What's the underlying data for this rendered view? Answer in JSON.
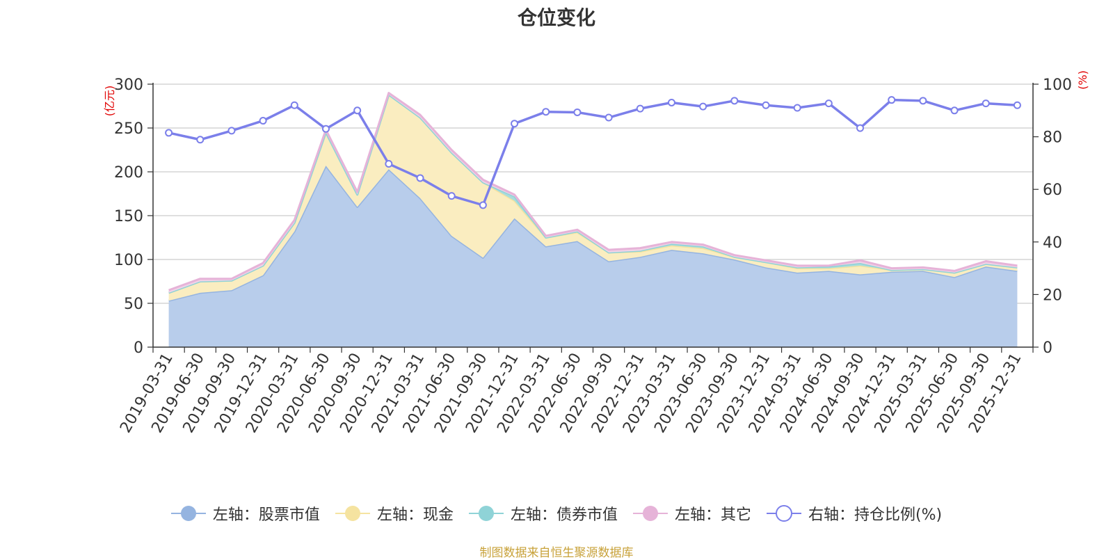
{
  "chart_data": {
    "type": "area",
    "title": "仓位变化",
    "ylabel_left": "(亿元)",
    "ylabel_right": "(%)",
    "ylim_left": [
      0,
      300
    ],
    "ylim_right": [
      0,
      100
    ],
    "yticks_left": [
      "0",
      "50",
      "100",
      "150",
      "200",
      "250",
      "300"
    ],
    "yticks_right": [
      "0",
      "20",
      "40",
      "60",
      "80",
      "100"
    ],
    "categories": [
      "2019-03-31",
      "2019-06-30",
      "2019-09-30",
      "2019-12-31",
      "2020-03-31",
      "2020-06-30",
      "2020-09-30",
      "2020-12-31",
      "2021-03-31",
      "2021-06-30",
      "2021-09-30",
      "2021-12-31",
      "2022-03-31",
      "2022-06-30",
      "2022-09-30",
      "2022-12-31",
      "2023-03-31",
      "2023-06-30",
      "2023-09-30",
      "2023-12-31",
      "2024-03-31",
      "2024-06-30",
      "2024-09-30",
      "2024-12-31",
      "2025-03-31",
      "2025-06-30",
      "2025-09-30",
      "2025-12-31"
    ],
    "series": [
      {
        "name": "左轴：股票市值",
        "axis": "left",
        "kind": "stacked-area",
        "color": "#95b4e0",
        "fill": "#b8cdeb",
        "values": [
          53,
          62,
          65,
          82,
          132,
          207,
          160,
          203,
          170,
          127,
          102,
          147,
          115,
          121,
          98,
          103,
          111,
          107,
          100,
          91,
          85,
          87,
          83,
          86,
          87,
          80,
          92,
          87
        ]
      },
      {
        "name": "左轴：现金",
        "axis": "left",
        "kind": "stacked-area",
        "color": "#f5e3a0",
        "fill": "#faedc0",
        "values": [
          9,
          13,
          11,
          11,
          10,
          38,
          14,
          85,
          92,
          95,
          86,
          20,
          10,
          10,
          10,
          6,
          5,
          6,
          3,
          6,
          5,
          3,
          10,
          2,
          2,
          5,
          3,
          4
        ]
      },
      {
        "name": "左轴：债券市值",
        "axis": "left",
        "kind": "stacked-area",
        "color": "#8fd3d7",
        "fill": "#a9dcdc",
        "values": [
          0,
          0,
          0,
          0,
          0,
          0,
          0,
          0,
          0,
          0,
          0,
          5,
          0,
          1,
          0,
          1,
          2,
          2,
          0,
          0,
          1,
          2,
          3,
          0,
          0,
          0,
          0,
          0
        ]
      },
      {
        "name": "左轴：其它",
        "axis": "left",
        "kind": "stacked-area",
        "color": "#e6b3d8",
        "fill": "#f1d3e7",
        "values": [
          3,
          3,
          2,
          3,
          3,
          3,
          3,
          2,
          3,
          3,
          3,
          2,
          2,
          2,
          3,
          3,
          2,
          2,
          2,
          2,
          2,
          1,
          3,
          2,
          2,
          2,
          3,
          2
        ]
      },
      {
        "name": "右轴：持仓比例(%)",
        "axis": "right",
        "kind": "line",
        "color": "#7b7fea",
        "values": [
          81.5,
          78.9,
          82.3,
          86.1,
          92.0,
          83.0,
          90.0,
          69.7,
          64.3,
          57.5,
          54.0,
          85.0,
          89.5,
          89.3,
          87.3,
          90.7,
          93.0,
          91.5,
          93.7,
          92.0,
          91.0,
          92.7,
          83.3,
          94.0,
          93.7,
          90.0,
          92.7,
          92.0
        ]
      }
    ]
  },
  "legend": {
    "items": [
      {
        "label": "左轴：股票市值",
        "color": "#95b4e0",
        "marker": "filled"
      },
      {
        "label": "左轴：现金",
        "color": "#f5e3a0",
        "marker": "filled"
      },
      {
        "label": "左轴：债券市值",
        "color": "#8fd3d7",
        "marker": "filled"
      },
      {
        "label": "左轴：其它",
        "color": "#e6b3d8",
        "marker": "filled"
      },
      {
        "label": "右轴：持仓比例(%)",
        "color": "#7b7fea",
        "marker": "hollow"
      }
    ]
  },
  "source": "制图数据来自恒生聚源数据库",
  "colors": {
    "axis_right_label": "#e00000",
    "grid": "#cccccc",
    "axis": "#333333"
  }
}
